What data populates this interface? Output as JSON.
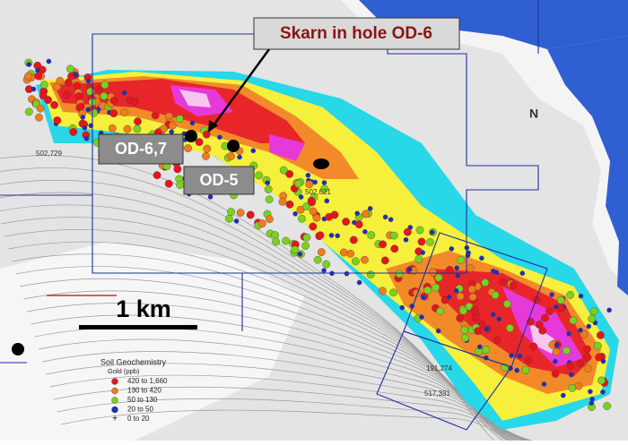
{
  "callouts": {
    "skarn": "Skarn in hole OD-6",
    "od67": "OD-6,7",
    "od5": "OD-5"
  },
  "scale_bar": "1 km",
  "legend": {
    "title": "Soil Geochemistry",
    "subtitle": "Gold (ppb)",
    "items": [
      {
        "label": "420 to 1,660",
        "color": "#e8141c"
      },
      {
        "label": "130 to 420",
        "color": "#f07d1a"
      },
      {
        "label": "50 to 130",
        "color": "#7cd11f"
      },
      {
        "label": "20 to 50",
        "color": "#1f2fbf"
      },
      {
        "label": "0 to 20",
        "symbol": "+"
      }
    ]
  },
  "grid_labels": [
    "502,729",
    "502,621",
    "517,331",
    "191,274"
  ]
}
